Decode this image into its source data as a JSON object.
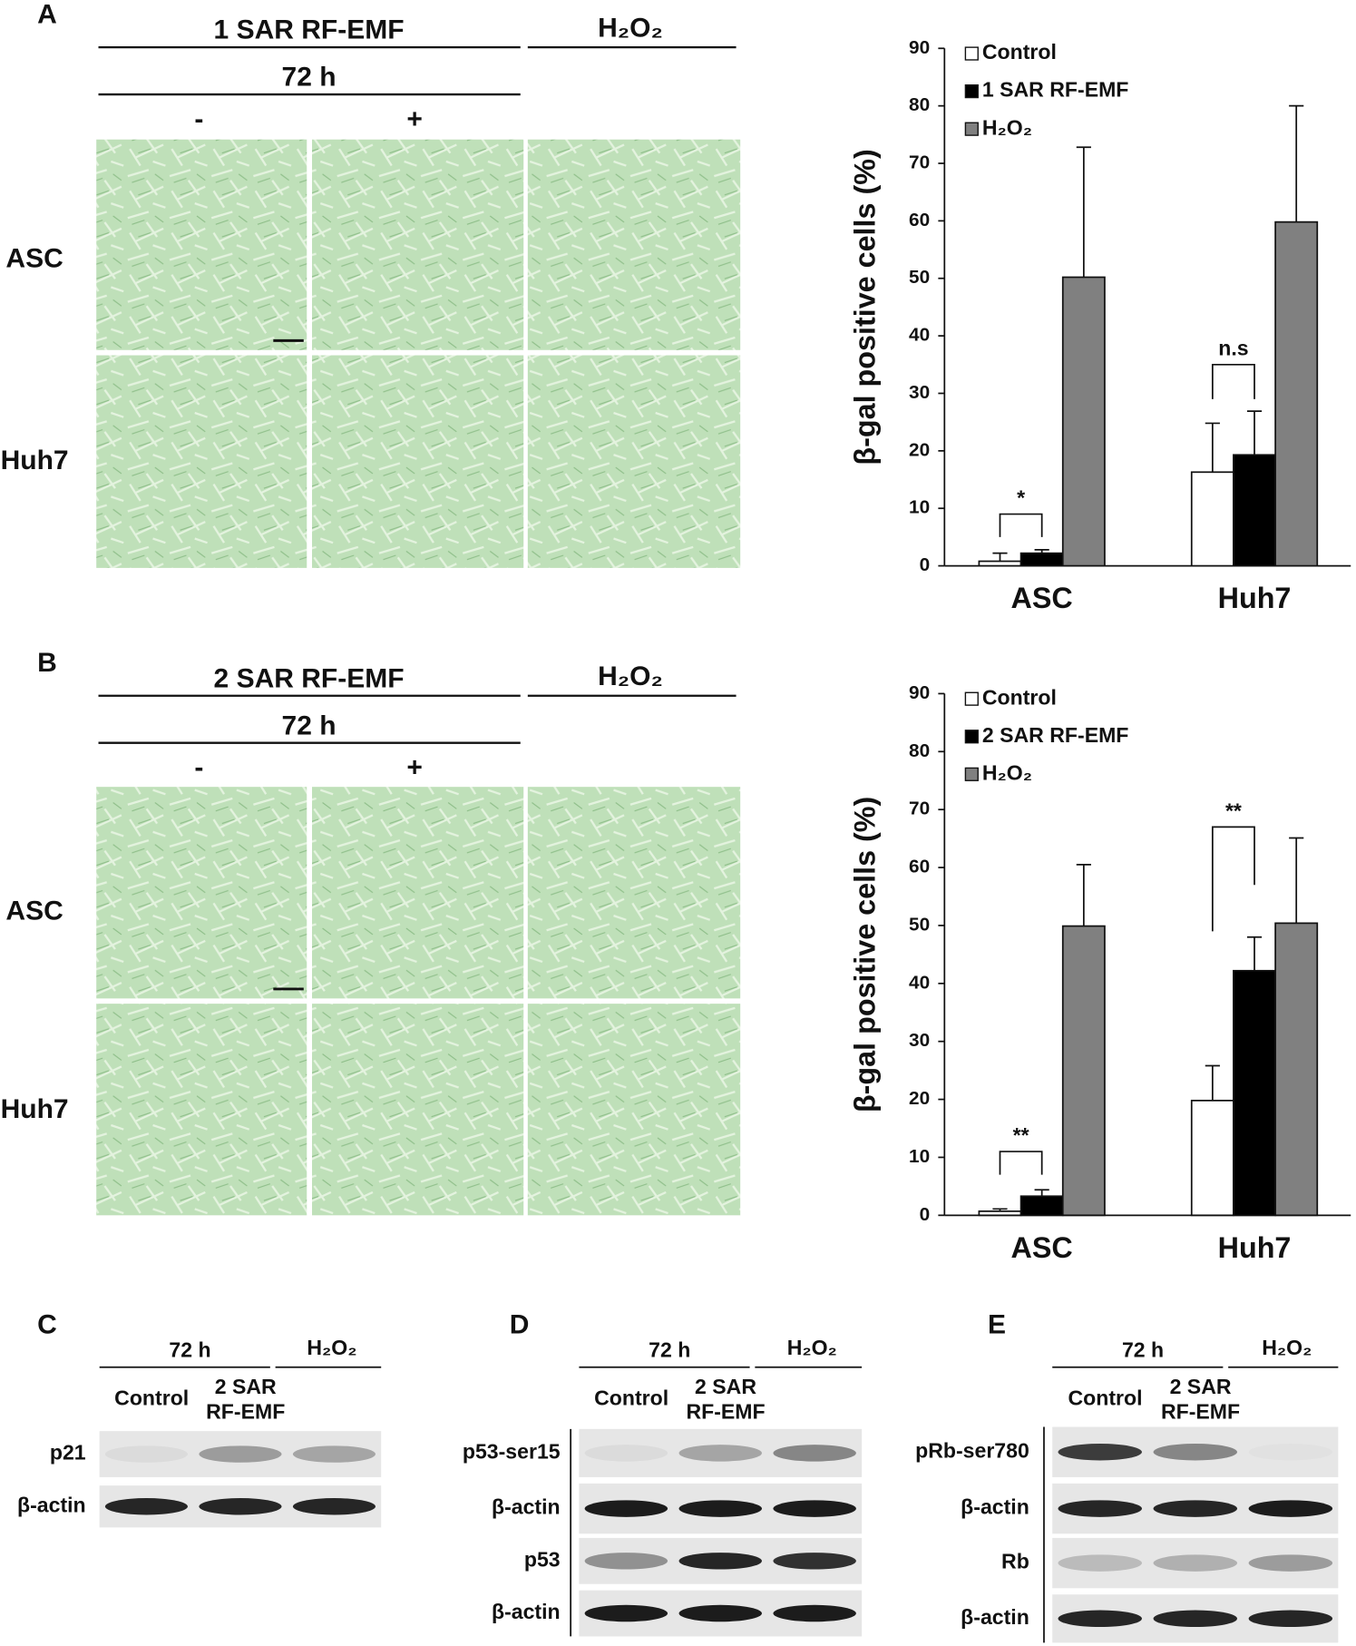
{
  "panels": [
    {
      "letter": "A",
      "header": "1 SAR  RF-EMF",
      "h2o2": "H₂O₂",
      "time": "72 h",
      "minus": "-",
      "plus": "+",
      "rows": [
        "ASC",
        "Huh7"
      ]
    },
    {
      "letter": "B",
      "header": "2 SAR  RF-EMF",
      "h2o2": "H₂O₂",
      "time": "72 h",
      "minus": "-",
      "plus": "+",
      "rows": [
        "ASC",
        "Huh7"
      ]
    }
  ],
  "chart_data": [
    {
      "type": "bar",
      "ylabel": "β-gal positive cells (%)",
      "categories": [
        "ASC",
        "Huh7"
      ],
      "series": [
        {
          "name": "Control",
          "color": "#ffffff",
          "values": [
            0.8,
            16.3
          ],
          "errors": [
            1.4,
            8.5
          ]
        },
        {
          "name": "1 SAR RF-EMF",
          "color": "#000000",
          "values": [
            2.2,
            19.3
          ],
          "errors": [
            0.6,
            7.6
          ]
        },
        {
          "name": "H₂O₂",
          "color": "#808080",
          "values": [
            50.2,
            59.8
          ],
          "errors": [
            22.6,
            20.2
          ]
        }
      ],
      "ylim": [
        0,
        90
      ],
      "yticks": [
        0,
        10,
        20,
        30,
        40,
        50,
        60,
        70,
        80,
        90
      ],
      "legend": "top-left",
      "annotations": [
        "*",
        "n.s"
      ]
    },
    {
      "type": "bar",
      "ylabel": "β-gal positive cells (%)",
      "categories": [
        "ASC",
        "Huh7"
      ],
      "series": [
        {
          "name": "Control",
          "color": "#ffffff",
          "values": [
            0.7,
            19.8
          ],
          "errors": [
            0.4,
            6.0
          ]
        },
        {
          "name": "2 SAR RF-EMF",
          "color": "#000000",
          "values": [
            3.3,
            42.2
          ],
          "errors": [
            1.1,
            5.8
          ]
        },
        {
          "name": "H₂O₂",
          "color": "#808080",
          "values": [
            49.9,
            50.4
          ],
          "errors": [
            10.6,
            14.7
          ]
        }
      ],
      "ylim": [
        0,
        90
      ],
      "yticks": [
        0,
        10,
        20,
        30,
        40,
        50,
        60,
        70,
        80,
        90
      ],
      "legend": "top-left",
      "annotations": [
        "**",
        "**"
      ]
    }
  ],
  "blots": [
    {
      "letter": "C",
      "time": "72 h",
      "h2o2": "H₂O₂",
      "control": "Control",
      "treatment": [
        "2 SAR",
        "RF-EMF"
      ],
      "rows": [
        "p21",
        "β-actin"
      ]
    },
    {
      "letter": "D",
      "time": "72 h",
      "h2o2": "H₂O₂",
      "control": "Control",
      "treatment": [
        "2 SAR",
        "RF-EMF"
      ],
      "rows": [
        "p53-ser15",
        "β-actin",
        "p53",
        "β-actin"
      ]
    },
    {
      "letter": "E",
      "time": "72 h",
      "h2o2": "H₂O₂",
      "control": "Control",
      "treatment": [
        "2 SAR",
        "RF-EMF"
      ],
      "rows": [
        "pRb-ser780",
        "β-actin",
        "Rb",
        "β-actin"
      ]
    }
  ]
}
